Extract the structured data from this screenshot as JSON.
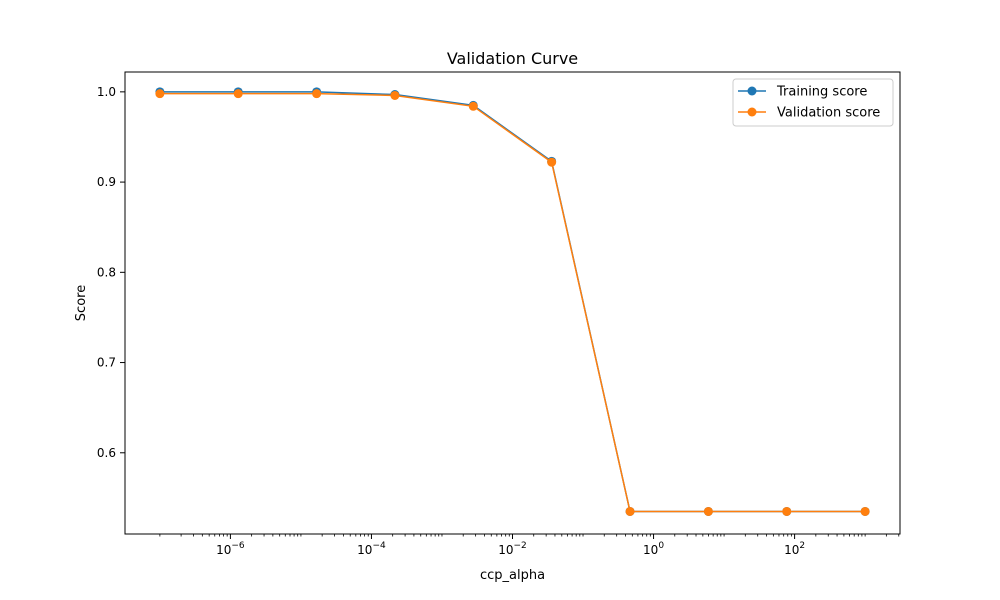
{
  "chart_data": {
    "type": "line",
    "title": "Validation Curve",
    "xlabel": "ccp_alpha",
    "ylabel": "Score",
    "xscale": "log",
    "xlim": [
      1e-07,
      1000
    ],
    "ylim": [
      0.51,
      1.022
    ],
    "grid": false,
    "legend_position": "upper-right",
    "x": [
      1e-07,
      1.29e-06,
      1.67e-05,
      0.000215,
      0.00278,
      0.0359,
      0.464,
      5.99,
      77.4,
      1000
    ],
    "x_tick_labels": [
      {
        "base": "10",
        "exp": "−6",
        "value": 1e-06
      },
      {
        "base": "10",
        "exp": "−4",
        "value": 0.0001
      },
      {
        "base": "10",
        "exp": "−2",
        "value": 0.01
      },
      {
        "base": "10",
        "exp": "0",
        "value": 1
      },
      {
        "base": "10",
        "exp": "2",
        "value": 100
      }
    ],
    "y_ticks": [
      0.6,
      0.7,
      0.8,
      0.9,
      1.0
    ],
    "y_tick_labels": [
      "0.6",
      "0.7",
      "0.8",
      "0.9",
      "1.0"
    ],
    "series": [
      {
        "name": "Training score",
        "color": "#1f77b4",
        "values": [
          1.0,
          1.0,
          1.0,
          0.997,
          0.985,
          0.923,
          0.535,
          0.535,
          0.535,
          0.535
        ]
      },
      {
        "name": "Validation score",
        "color": "#ff7f0e",
        "values": [
          0.998,
          0.998,
          0.998,
          0.996,
          0.984,
          0.922,
          0.535,
          0.535,
          0.535,
          0.535
        ]
      }
    ]
  }
}
